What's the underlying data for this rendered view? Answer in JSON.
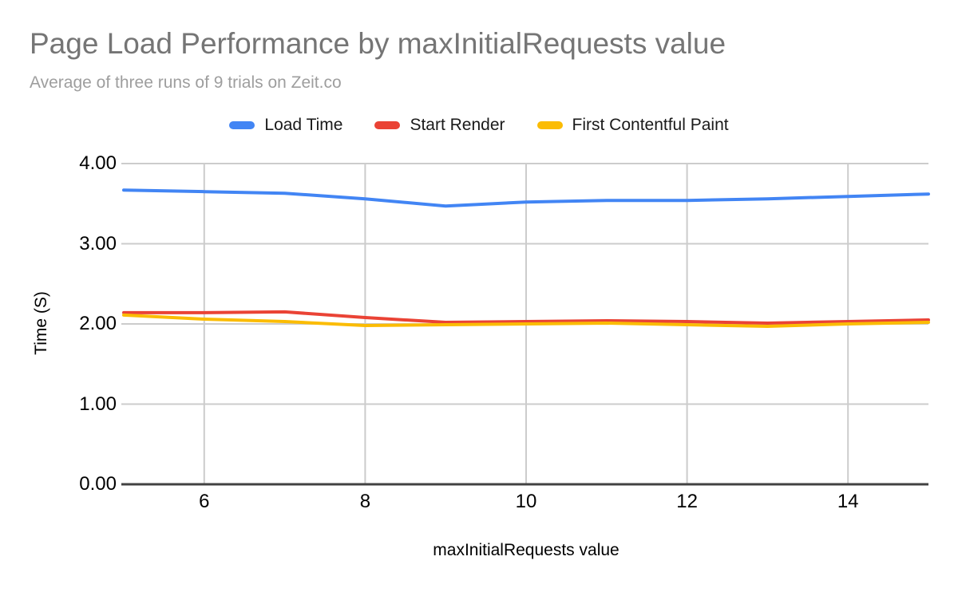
{
  "header": {
    "title": "Page Load Performance by maxInitialRequests value",
    "subtitle": "Average of three runs of 9 trials on Zeit.co"
  },
  "chart_data": {
    "type": "line",
    "x": [
      5,
      6,
      7,
      8,
      9,
      10,
      11,
      12,
      13,
      14,
      15
    ],
    "series": [
      {
        "name": "Load Time",
        "color": "#4285F4",
        "values": [
          3.67,
          3.65,
          3.63,
          3.56,
          3.47,
          3.52,
          3.54,
          3.54,
          3.56,
          3.59,
          3.62
        ]
      },
      {
        "name": "Start Render",
        "color": "#EA4335",
        "values": [
          2.14,
          2.14,
          2.15,
          2.08,
          2.02,
          2.03,
          2.04,
          2.03,
          2.01,
          2.03,
          2.05
        ]
      },
      {
        "name": "First Contentful Paint",
        "color": "#FBBC04",
        "values": [
          2.11,
          2.06,
          2.03,
          1.98,
          1.99,
          2.0,
          2.01,
          1.99,
          1.97,
          2.0,
          2.02
        ]
      }
    ],
    "xlabel": "maxInitialRequests value",
    "ylabel": "Time (S)",
    "x_ticks": [
      6,
      8,
      10,
      12,
      14
    ],
    "y_ticks": [
      {
        "value": 0,
        "label": "0.00"
      },
      {
        "value": 1,
        "label": "1.00"
      },
      {
        "value": 2,
        "label": "2.00"
      },
      {
        "value": 3,
        "label": "3.00"
      },
      {
        "value": 4,
        "label": "4.00"
      }
    ],
    "xlim": [
      5,
      15
    ],
    "ylim": [
      0,
      4
    ],
    "legend_position": "top",
    "grid": true
  },
  "colors": {
    "title_text": "#757575",
    "subtitle_text": "#9e9e9e",
    "grid_line": "#cccccc",
    "axis_line": "#424242",
    "tick_text": "#000000"
  }
}
